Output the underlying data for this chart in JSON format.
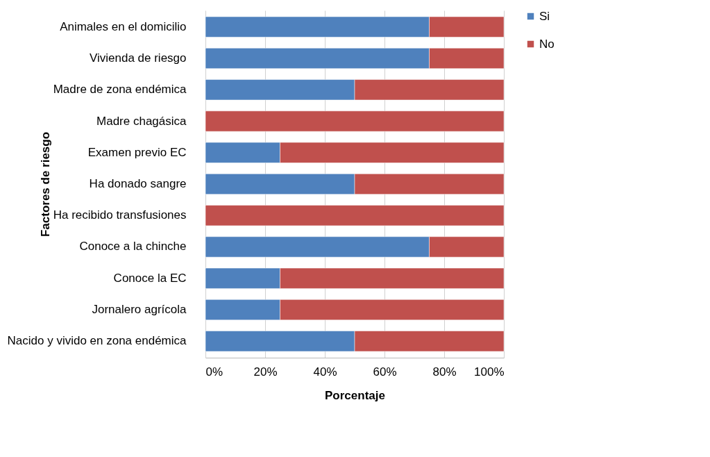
{
  "chart_data": {
    "type": "bar",
    "orientation": "horizontal",
    "stacked": true,
    "ylabel": "Factores de riesgo",
    "xlabel": "Porcentaje",
    "categories": [
      "Animales en el domicilio",
      "Vivienda de riesgo",
      "Madre de zona endémica",
      "Madre chagásica",
      "Examen previo EC",
      "Ha donado sangre",
      "Ha recibido transfusiones",
      "Conoce a la chinche",
      "Conoce la EC",
      "Jornalero agrícola",
      "Nacido y vivido en zona endémica"
    ],
    "series": [
      {
        "name": "Si",
        "color": "#4f81bd",
        "values": [
          75,
          75,
          50,
          0,
          25,
          50,
          0,
          75,
          25,
          25,
          50
        ]
      },
      {
        "name": "No",
        "color": "#c0504d",
        "values": [
          25,
          25,
          50,
          100,
          75,
          50,
          100,
          25,
          75,
          75,
          50
        ]
      }
    ],
    "xlim": [
      0,
      100
    ],
    "xticks": [
      {
        "value": 0,
        "label": "0%"
      },
      {
        "value": 20,
        "label": "20%"
      },
      {
        "value": 40,
        "label": "40%"
      },
      {
        "value": 60,
        "label": "60%"
      },
      {
        "value": 80,
        "label": "80%"
      },
      {
        "value": 100,
        "label": "100%"
      }
    ],
    "grid": "x",
    "legend": "right"
  }
}
